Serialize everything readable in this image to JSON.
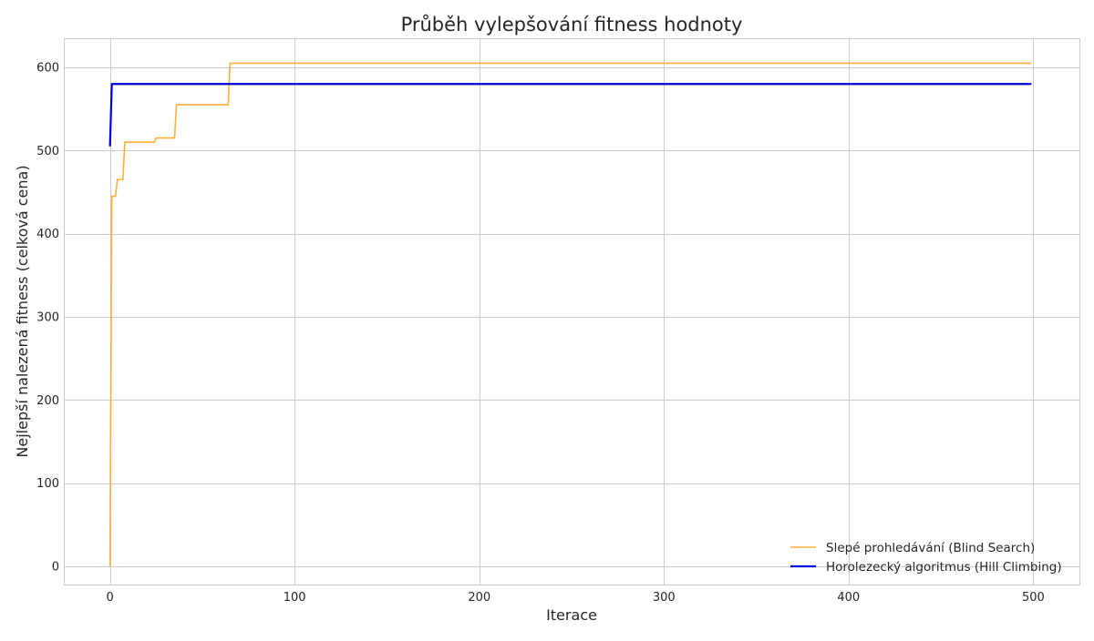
{
  "chart_data": {
    "type": "line",
    "title": "Průběh vylepšování fitness hodnoty",
    "xlabel": "Iterace",
    "ylabel": "Nejlepší nalezená fitness (celková cena)",
    "xlim": [
      -25,
      525
    ],
    "ylim": [
      -22,
      635
    ],
    "xticks": [
      0,
      100,
      200,
      300,
      400,
      500
    ],
    "yticks": [
      0,
      100,
      200,
      300,
      400,
      500,
      600
    ],
    "grid": true,
    "legend_position": "lower-right",
    "series": [
      {
        "name": "Slepé prohledávání (Blind Search)",
        "color": "#ffb03b",
        "points": [
          [
            0,
            0
          ],
          [
            1,
            445
          ],
          [
            3,
            445
          ],
          [
            4,
            465
          ],
          [
            7,
            465
          ],
          [
            8,
            510
          ],
          [
            24,
            510
          ],
          [
            25,
            515
          ],
          [
            35,
            515
          ],
          [
            36,
            555
          ],
          [
            64,
            555
          ],
          [
            65,
            605
          ],
          [
            499,
            605
          ]
        ]
      },
      {
        "name": "Horolezecký algoritmus (Hill Climbing)",
        "color": "#0000dd",
        "points": [
          [
            0,
            505
          ],
          [
            1,
            580
          ],
          [
            499,
            580
          ]
        ]
      }
    ]
  }
}
